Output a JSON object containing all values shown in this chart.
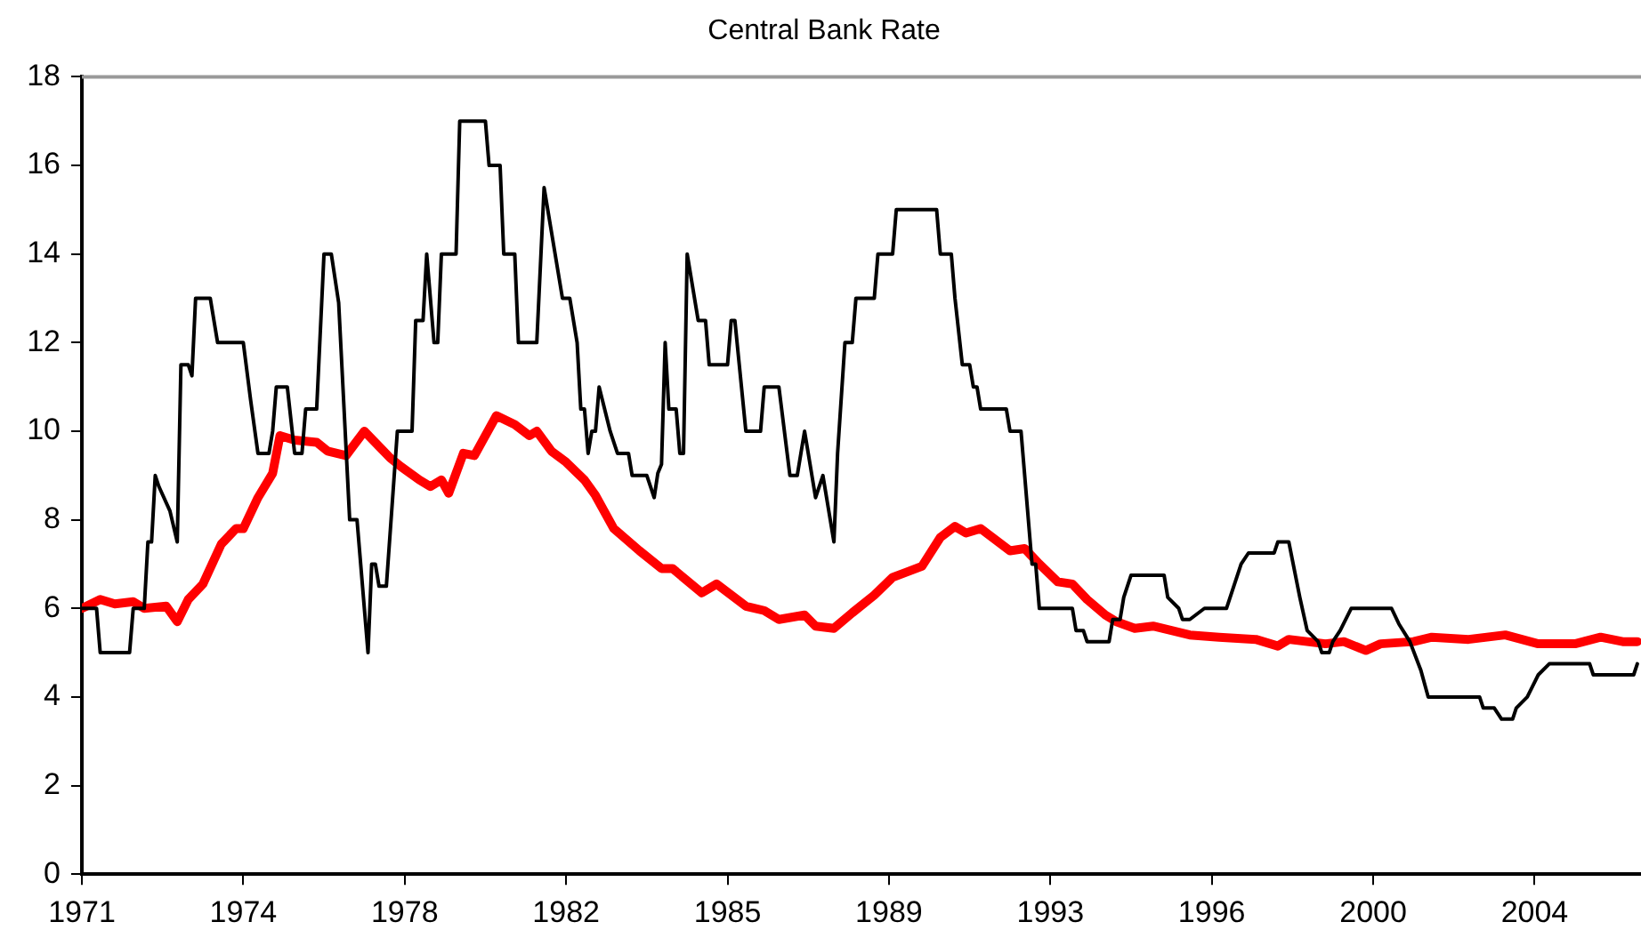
{
  "chart_data": {
    "type": "line",
    "title": "Central Bank Rate",
    "xlim": [
      "1971-01",
      "2006-06"
    ],
    "xticks": [
      {
        "value": "1971-01",
        "label": "1971"
      },
      {
        "value": "1974-09",
        "label": "1974"
      },
      {
        "value": "1978-05",
        "label": "1978"
      },
      {
        "value": "1982-01",
        "label": "1982"
      },
      {
        "value": "1985-09",
        "label": "1985"
      },
      {
        "value": "1989-05",
        "label": "1989"
      },
      {
        "value": "1993-01",
        "label": "1993"
      },
      {
        "value": "1996-09",
        "label": "1996"
      },
      {
        "value": "2000-05",
        "label": "2000"
      },
      {
        "value": "2004-01",
        "label": "2004"
      }
    ],
    "ylim": [
      0,
      18
    ],
    "yticks": [
      0,
      2,
      4,
      6,
      8,
      10,
      12,
      14,
      16,
      18
    ],
    "grid": false,
    "legend": false,
    "marker": "none",
    "line_style": "solid",
    "series": [
      {
        "color": "#000000",
        "x": [
          "1971-01",
          "1971-05",
          "1971-06",
          "1972-02",
          "1972-03",
          "1972-06",
          "1972-07",
          "1972-08",
          "1972-09",
          "1972-10",
          "1973-01",
          "1973-03",
          "1973-04",
          "1973-06",
          "1973-07",
          "1973-08",
          "1973-12",
          "1974-02",
          "1974-09",
          "1974-11",
          "1975-01",
          "1975-04",
          "1975-05",
          "1975-06",
          "1975-09",
          "1975-11",
          "1976-01",
          "1976-02",
          "1976-05",
          "1976-07",
          "1976-09",
          "1976-11",
          "1977-02",
          "1977-04",
          "1977-07",
          "1977-08",
          "1977-09",
          "1977-10",
          "1977-12",
          "1978-03",
          "1978-07",
          "1978-08",
          "1978-10",
          "1978-11",
          "1979-01",
          "1979-02",
          "1979-03",
          "1979-07",
          "1979-08",
          "1980-03",
          "1980-04",
          "1980-07",
          "1980-08",
          "1980-11",
          "1980-12",
          "1981-05",
          "1981-07",
          "1981-12",
          "1982-02",
          "1982-04",
          "1982-05",
          "1982-06",
          "1982-07",
          "1982-08",
          "1982-09",
          "1982-10",
          "1983-01",
          "1983-03",
          "1983-06",
          "1983-07",
          "1983-11",
          "1984-01",
          "1984-02",
          "1984-03",
          "1984-04",
          "1984-05",
          "1984-07",
          "1984-08",
          "1984-09",
          "1984-10",
          "1985-01",
          "1985-03",
          "1985-04",
          "1985-09",
          "1985-10",
          "1985-11",
          "1986-02",
          "1986-06",
          "1986-07",
          "1986-11",
          "1987-02",
          "1987-04",
          "1987-06",
          "1987-09",
          "1987-11",
          "1988-02",
          "1988-03",
          "1988-05",
          "1988-07",
          "1988-08",
          "1989-01",
          "1989-02",
          "1989-06",
          "1989-07",
          "1990-06",
          "1990-07",
          "1990-10",
          "1990-11",
          "1991-01",
          "1991-03",
          "1991-04",
          "1991-05",
          "1991-06",
          "1992-01",
          "1992-02",
          "1992-05",
          "1992-08",
          "1992-09",
          "1992-10",
          "1993-07",
          "1993-08",
          "1993-10",
          "1993-11",
          "1994-05",
          "1994-06",
          "1994-08",
          "1994-09",
          "1994-11",
          "1995-08",
          "1995-09",
          "1995-12",
          "1996-01",
          "1996-03",
          "1996-07",
          "1997-01",
          "1997-05",
          "1997-07",
          "1998-02",
          "1998-03",
          "1998-06",
          "1998-09",
          "1998-11",
          "1999-02",
          "1999-03",
          "1999-05",
          "1999-06",
          "1999-08",
          "1999-11",
          "2000-10",
          "2000-12",
          "2001-03",
          "2001-06",
          "2001-08",
          "2002-10",
          "2002-11",
          "2003-02",
          "2003-04",
          "2003-07",
          "2003-08",
          "2003-11",
          "2004-02",
          "2004-05",
          "2005-04",
          "2005-05",
          "2006-04",
          "2006-05"
        ],
        "values": [
          6,
          6,
          5,
          5,
          6,
          6,
          7.5,
          7.5,
          9,
          8.75,
          8.2,
          7.5,
          11.5,
          11.5,
          11.25,
          13,
          13,
          12,
          12,
          10.7,
          9.5,
          9.5,
          10,
          11,
          11,
          9.5,
          9.5,
          10.5,
          10.5,
          14,
          14,
          12.9,
          8,
          8,
          5,
          7,
          7,
          6.5,
          6.5,
          10,
          10,
          12.5,
          12.5,
          14,
          12,
          12,
          14,
          14,
          17,
          17,
          16,
          16,
          14,
          14,
          12,
          12,
          15.5,
          13,
          13,
          12,
          10.5,
          10.5,
          9.5,
          10,
          10,
          11,
          10,
          9.5,
          9.5,
          9,
          9,
          8.5,
          9.05,
          9.25,
          12,
          10.5,
          10.5,
          9.5,
          9.5,
          14,
          12.5,
          12.5,
          11.5,
          11.5,
          12.5,
          12.5,
          10,
          10,
          11,
          11,
          9,
          9,
          10,
          8.5,
          9,
          7.5,
          9.5,
          12,
          12,
          13,
          13,
          14,
          14,
          15,
          15,
          14,
          14,
          13,
          11.5,
          11.5,
          11,
          11,
          10.5,
          10.5,
          10,
          10,
          7,
          7,
          6,
          6,
          5.5,
          5.5,
          5.25,
          5.25,
          5.75,
          5.75,
          6.25,
          6.75,
          6.75,
          6.25,
          6,
          5.75,
          5.75,
          6,
          6,
          7,
          7.25,
          7.25,
          7.5,
          7.5,
          6.25,
          5.5,
          5.25,
          5,
          5,
          5.25,
          5.5,
          6,
          6,
          5.65,
          5.25,
          4.6,
          4,
          4,
          3.75,
          3.75,
          3.5,
          3.5,
          3.75,
          4,
          4.5,
          4.75,
          4.75,
          4.5,
          4.5,
          4.75
        ]
      },
      {
        "color": "#ff0000",
        "x": [
          "1971-01",
          "1971-06",
          "1971-10",
          "1972-03",
          "1972-06",
          "1972-12",
          "1973-03",
          "1973-06",
          "1973-10",
          "1974-03",
          "1974-07",
          "1974-09",
          "1975-01",
          "1975-05",
          "1975-07",
          "1975-11",
          "1976-05",
          "1976-08",
          "1977-01",
          "1977-06",
          "1978-01",
          "1978-04",
          "1978-09",
          "1978-12",
          "1979-03",
          "1979-05",
          "1979-09",
          "1979-12",
          "1980-02",
          "1980-06",
          "1980-11",
          "1981-03",
          "1981-05",
          "1981-09",
          "1982-01",
          "1982-06",
          "1982-09",
          "1983-02",
          "1983-09",
          "1984-03",
          "1984-06",
          "1985-02",
          "1985-06",
          "1986-02",
          "1986-07",
          "1986-11",
          "1987-06",
          "1987-09",
          "1988-02",
          "1988-07",
          "1989-01",
          "1989-06",
          "1990-02",
          "1990-07",
          "1990-11",
          "1991-02",
          "1991-06",
          "1991-10",
          "1992-02",
          "1992-06",
          "1992-10",
          "1993-03",
          "1993-07",
          "1993-11",
          "1994-04",
          "1994-07",
          "1994-12",
          "1995-05",
          "1996-03",
          "1996-11",
          "1997-09",
          "1998-03",
          "1998-06",
          "1999-04",
          "1999-09",
          "2000-03",
          "2000-07",
          "2001-04",
          "2001-09",
          "2002-07",
          "2003-05",
          "2004-02",
          "2004-12",
          "2005-07",
          "2006-01",
          "2006-05"
        ],
        "values": [
          6,
          6.2,
          6.1,
          6.15,
          6,
          6.05,
          5.7,
          6.2,
          6.55,
          7.45,
          7.8,
          7.8,
          8.5,
          9.05,
          9.9,
          9.8,
          9.75,
          9.55,
          9.45,
          10,
          9.4,
          9.2,
          8.9,
          8.75,
          8.9,
          8.6,
          9.5,
          9.45,
          9.75,
          10.35,
          10.15,
          9.9,
          10,
          9.55,
          9.3,
          8.9,
          8.55,
          7.8,
          7.3,
          6.9,
          6.9,
          6.35,
          6.55,
          6.05,
          5.95,
          5.75,
          5.85,
          5.6,
          5.55,
          5.9,
          6.3,
          6.7,
          6.95,
          7.6,
          7.85,
          7.7,
          7.8,
          7.55,
          7.3,
          7.35,
          7,
          6.6,
          6.55,
          6.2,
          5.85,
          5.7,
          5.55,
          5.6,
          5.4,
          5.35,
          5.3,
          5.15,
          5.3,
          5.2,
          5.25,
          5.05,
          5.2,
          5.25,
          5.35,
          5.3,
          5.4,
          5.2,
          5.2,
          5.35,
          5.25,
          5.25
        ]
      }
    ]
  }
}
